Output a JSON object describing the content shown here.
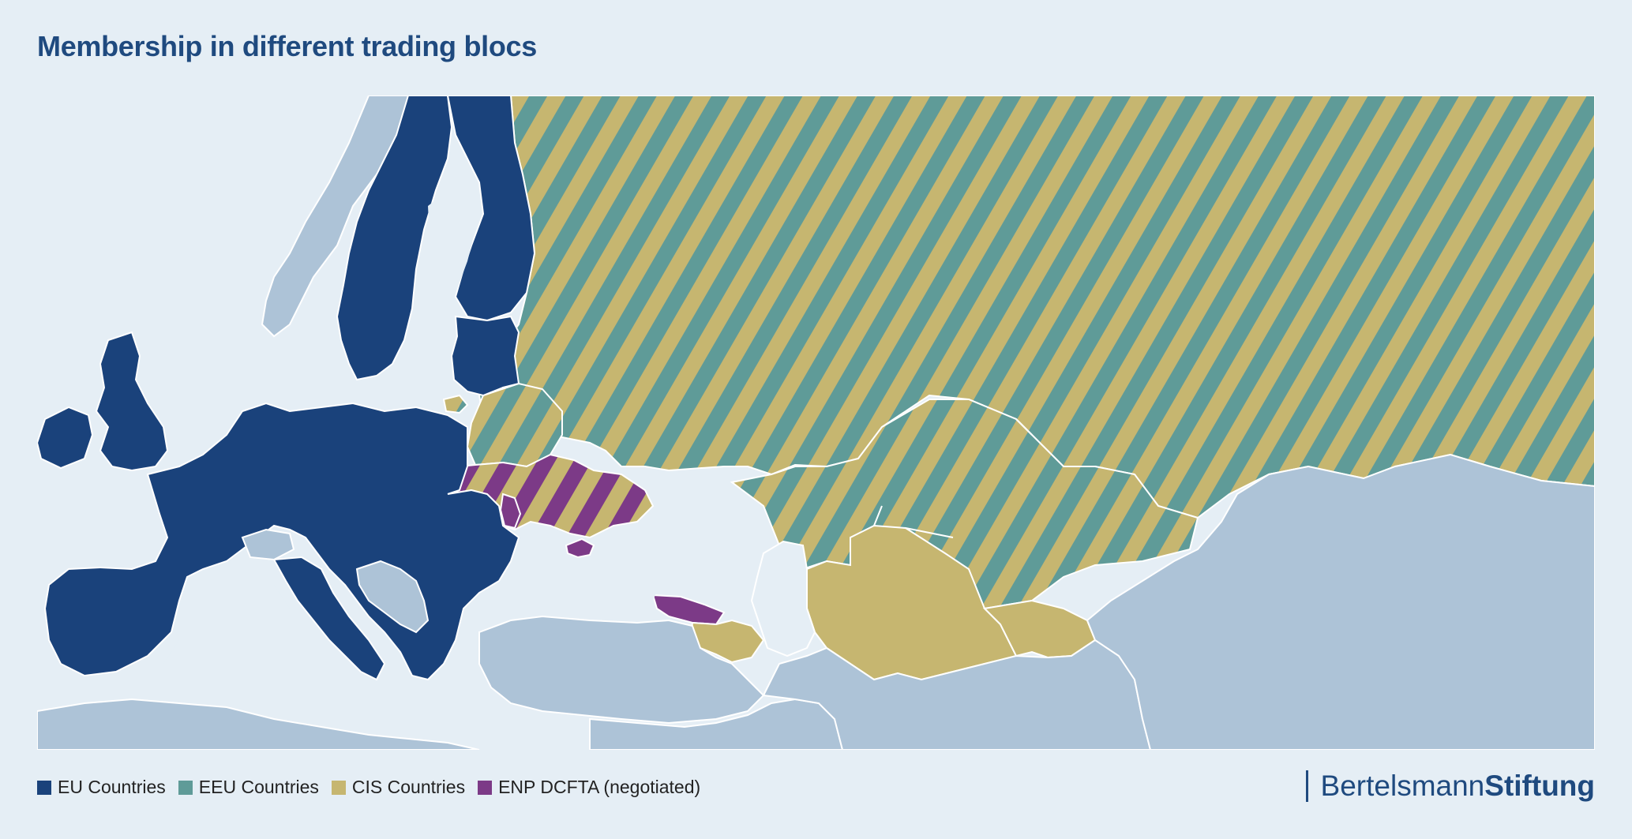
{
  "title": "Membership in different trading blocs",
  "colors": {
    "background": "#e5eef5",
    "water": "#e5eef5",
    "non_member": "#adc3d7",
    "eu": "#1a427b",
    "eeu": "#5f9b98",
    "cis": "#c6b670",
    "enp": "#7c3a87",
    "border": "#ffffff"
  },
  "legend": [
    {
      "label": "EU Countries",
      "color": "#1a427b"
    },
    {
      "label": "EEU Countries",
      "color": "#5f9b98"
    },
    {
      "label": "CIS Countries",
      "color": "#c6b670"
    },
    {
      "label": "ENP DCFTA (negotiated)",
      "color": "#7c3a87"
    }
  ],
  "brand": {
    "regular": "Bertelsmann",
    "bold": "Stiftung"
  }
}
